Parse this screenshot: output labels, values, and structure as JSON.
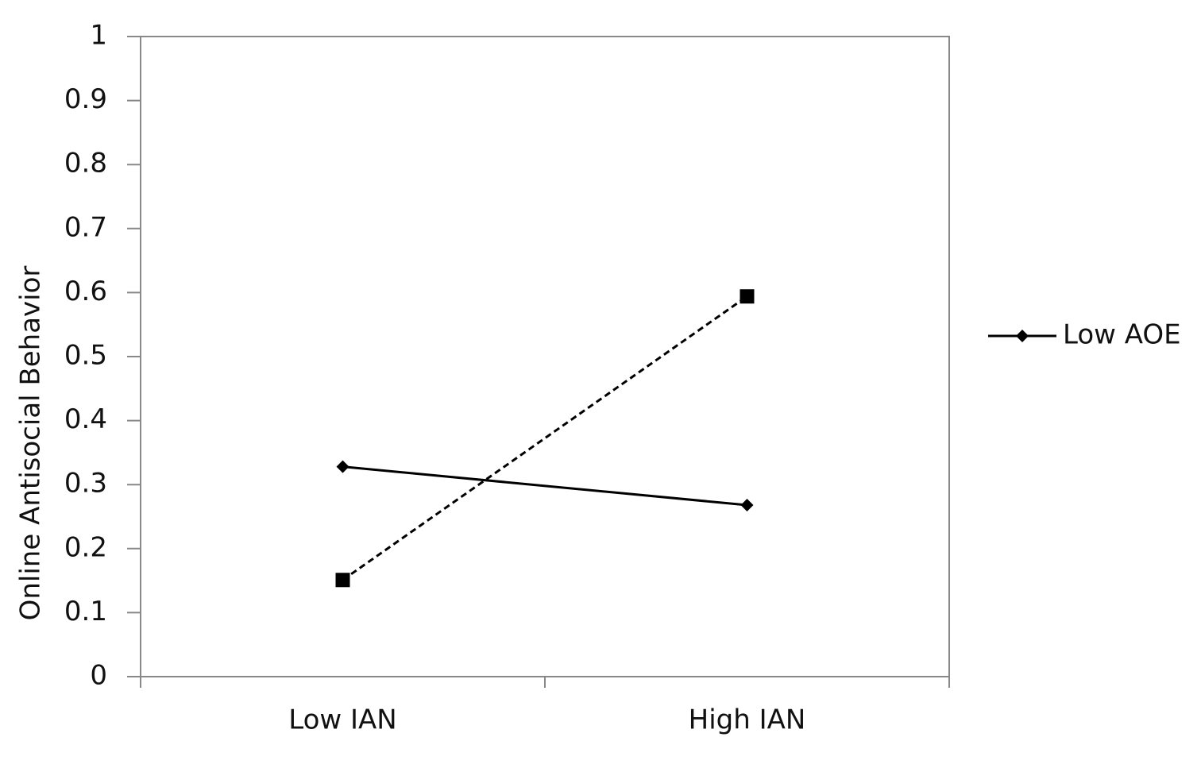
{
  "chart_data": {
    "type": "line",
    "y_label": "Online Antisocial Behavior",
    "categories": [
      "Low IAN",
      "High IAN"
    ],
    "series": [
      {
        "name": "Low AOE",
        "color": "#000000",
        "line_style": "solid",
        "marker": "diamond",
        "values": [
          0.328,
          0.268
        ]
      },
      {
        "color": "#000000",
        "line_style": "dashed",
        "marker": "square",
        "values": [
          0.151,
          0.594
        ]
      }
    ],
    "ylim": [
      0,
      1
    ],
    "yticks": [
      0,
      0.1,
      0.2,
      0.3,
      0.4,
      0.5,
      0.6,
      0.7,
      0.8,
      0.9,
      1
    ],
    "grid": false,
    "legend": "right"
  }
}
